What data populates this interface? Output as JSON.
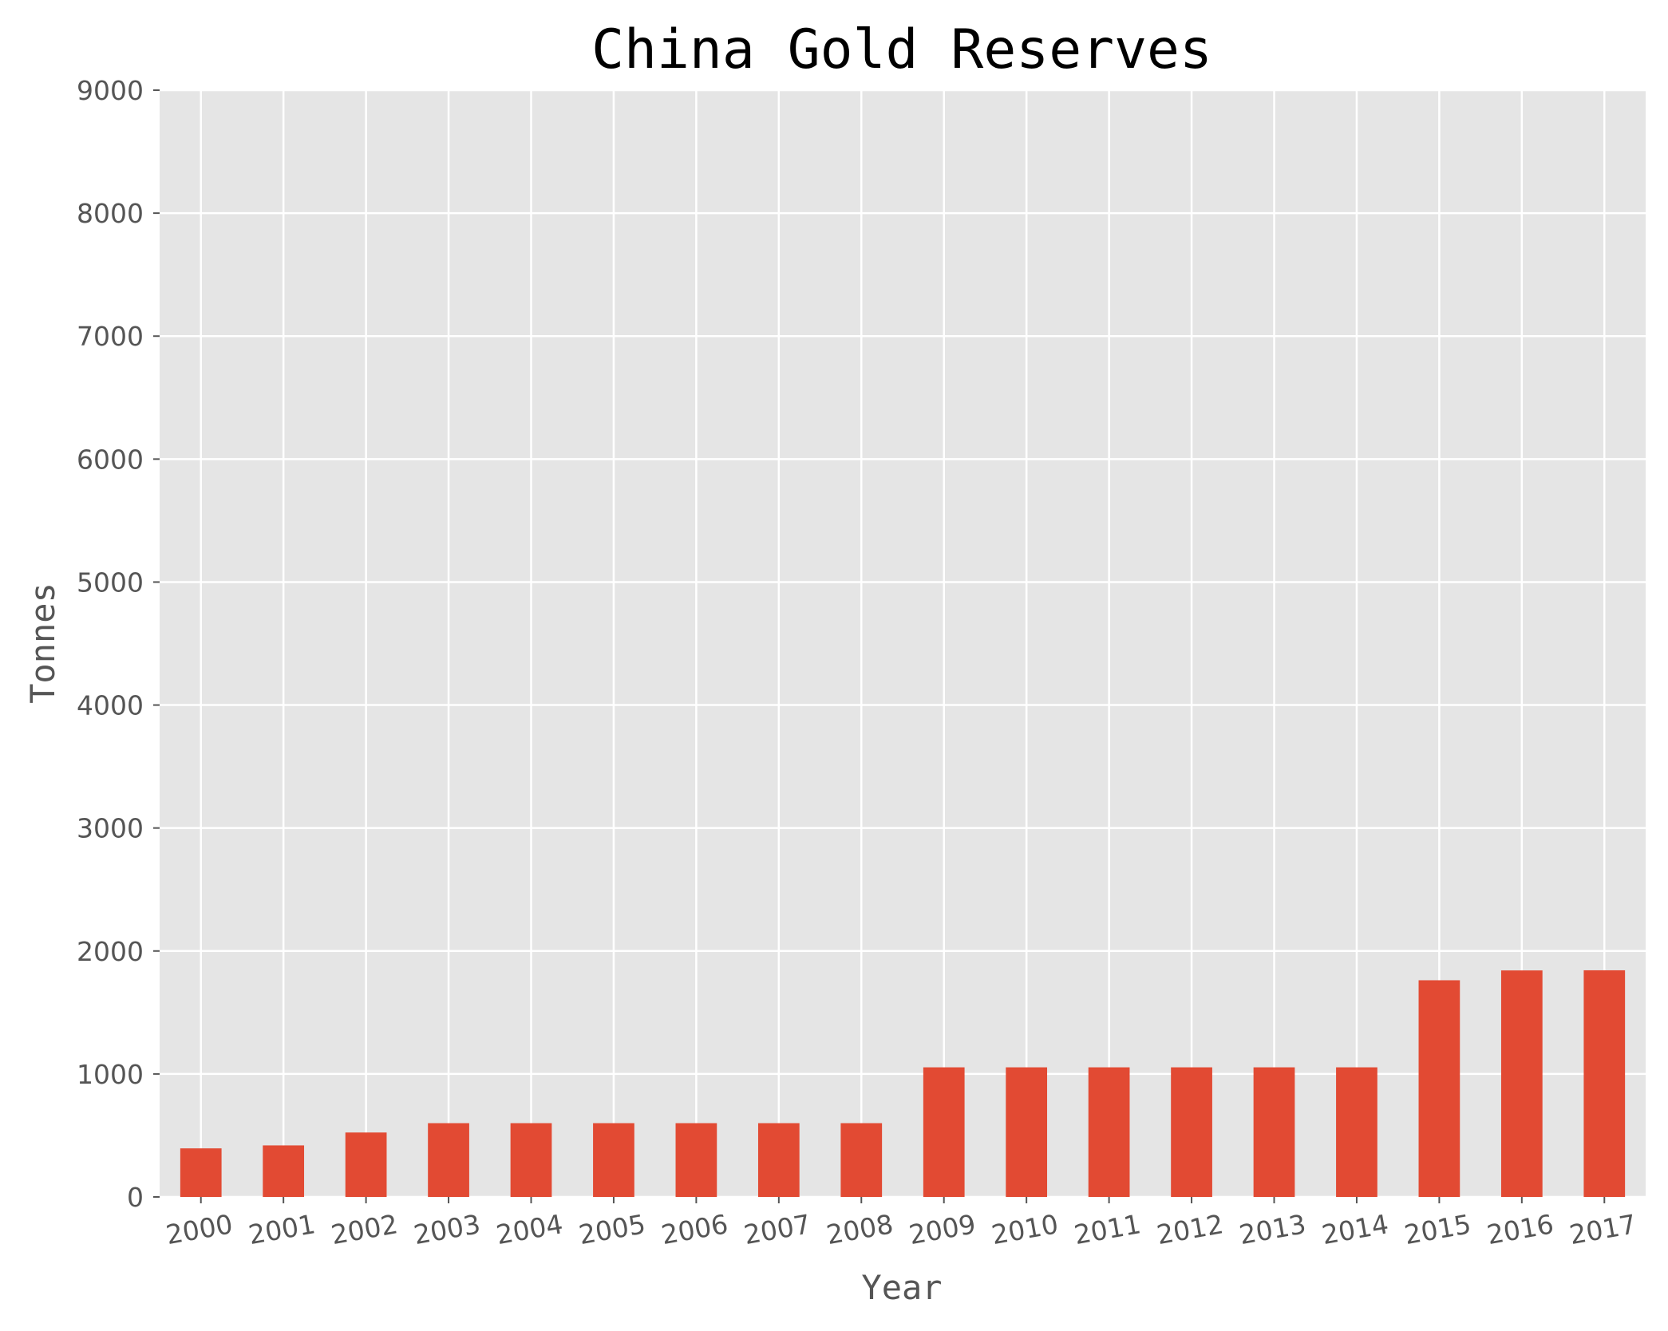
{
  "chart_data": {
    "type": "bar",
    "title": "China Gold Reserves",
    "xlabel": "Year",
    "ylabel": "Tonnes",
    "categories": [
      "2000",
      "2001",
      "2002",
      "2003",
      "2004",
      "2005",
      "2006",
      "2007",
      "2008",
      "2009",
      "2010",
      "2011",
      "2012",
      "2013",
      "2014",
      "2015",
      "2016",
      "2017"
    ],
    "values": [
      395,
      419,
      524,
      600,
      600,
      600,
      600,
      600,
      600,
      1054,
      1054,
      1054,
      1054,
      1054,
      1054,
      1762,
      1842,
      1843
    ],
    "ylim": [
      0,
      9000
    ],
    "yticks": [
      "0",
      "1000",
      "2000",
      "3000",
      "4000",
      "5000",
      "6000",
      "7000",
      "8000",
      "9000"
    ],
    "grid": true,
    "colors": {
      "bar": "#E24A33",
      "plot_background": "#E5E5E5",
      "grid": "#FFFFFF"
    }
  }
}
